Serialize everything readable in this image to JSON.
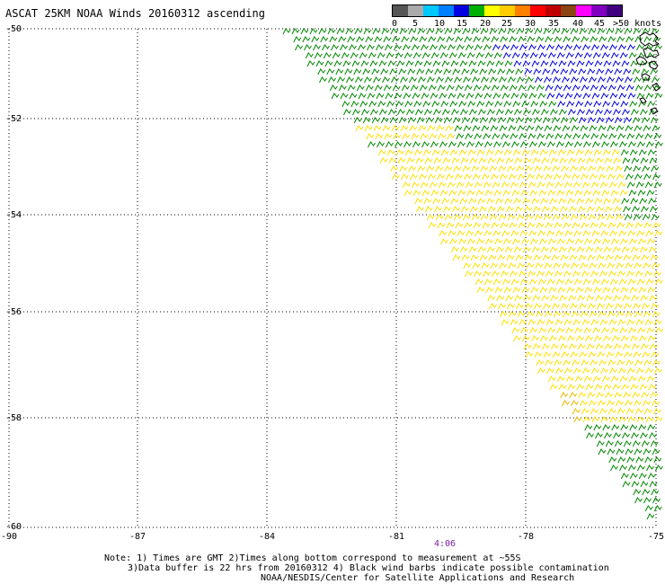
{
  "title": "ASCAT 25KM NOAA Winds 20160312 ascending",
  "legend": {
    "labels": [
      "0",
      "5",
      "10",
      "15",
      "20",
      "25",
      "30",
      "35",
      "40",
      "45",
      ">50 knots"
    ],
    "colors": [
      "#555555",
      "#aaaaaa",
      "#00c8ff",
      "#0080ff",
      "#0000e0",
      "#00b000",
      "#ffff00",
      "#ffcc00",
      "#ff8000",
      "#ff0000",
      "#c00000",
      "#8b4513",
      "#ff00ff",
      "#8000c0",
      "#400080"
    ]
  },
  "axes": {
    "lat_labels": [
      "-50",
      "-52",
      "-54",
      "-56",
      "-58",
      "-60"
    ],
    "lon_labels": [
      "-90",
      "-87",
      "-84",
      "-81",
      "-78",
      "-75"
    ]
  },
  "time_label": "4:06",
  "notes": [
    "Note: 1) Times are GMT 2)Times along bottom correspond to measurement at ~55S",
    "3)Data buffer is 22 hrs from 20160312 4) Black wind barbs indicate possible contamination",
    "NOAA/NESDIS/Center for Satellite Applications and Research"
  ],
  "wind_colors": {
    "green": "#008800",
    "yellow": "#ffe000",
    "orange": "#e8b800",
    "blue": "#0000dd",
    "black": "#000000"
  }
}
